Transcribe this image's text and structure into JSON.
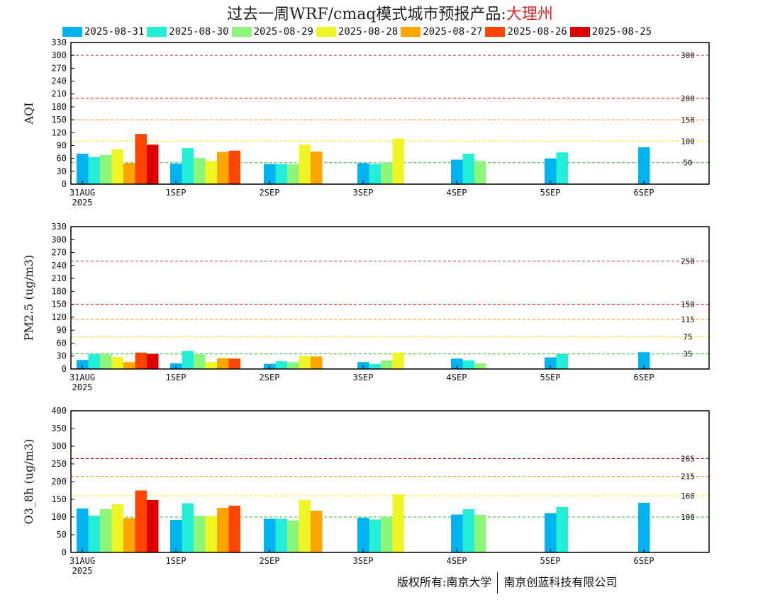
{
  "title": {
    "prefix": "过去一周WRF/cmaq模式城市预报产品:",
    "city": "大理州"
  },
  "legend": [
    {
      "label": "2025-08-31",
      "color": "#00b2ee"
    },
    {
      "label": "2025-08-30",
      "color": "#24efd6"
    },
    {
      "label": "2025-08-29",
      "color": "#8cf57a"
    },
    {
      "label": "2025-08-28",
      "color": "#eef522"
    },
    {
      "label": "2025-08-27",
      "color": "#ffa500"
    },
    {
      "label": "2025-08-26",
      "color": "#ff4500"
    },
    {
      "label": "2025-08-25",
      "color": "#dc0000"
    }
  ],
  "footer": {
    "left": "版权所有:南京大学",
    "right": "南京创蓝科技有限公司"
  },
  "chart_data": [
    {
      "type": "bar",
      "ylabel": "AQI",
      "ylim": [
        0,
        330
      ],
      "yticks": [
        0,
        30,
        60,
        90,
        120,
        150,
        180,
        210,
        240,
        270,
        300,
        330
      ],
      "categories": [
        "31AUG",
        "1SEP",
        "2SEP",
        "3SEP",
        "4SEP",
        "5SEP",
        "6SEP"
      ],
      "year_label": "2025",
      "thresholds": [
        {
          "value": 300,
          "label": "300",
          "color": "#b03060"
        },
        {
          "value": 200,
          "label": "200",
          "color": "#dc0000"
        },
        {
          "value": 150,
          "label": "150",
          "color": "#ff8c00"
        },
        {
          "value": 100,
          "label": "100",
          "color": "#eeee00"
        },
        {
          "value": 50,
          "label": "50",
          "color": "#22bb22"
        }
      ],
      "series": [
        {
          "values": [
            71,
            48,
            47,
            49,
            57,
            60,
            86
          ]
        },
        {
          "values": [
            63,
            84,
            47,
            47,
            71,
            74,
            null
          ]
        },
        {
          "values": [
            68,
            61,
            46,
            50,
            54,
            null,
            null
          ]
        },
        {
          "values": [
            81,
            54,
            92,
            106,
            null,
            null,
            null
          ]
        },
        {
          "values": [
            49,
            75,
            76,
            null,
            null,
            null,
            null
          ]
        },
        {
          "values": [
            117,
            78,
            null,
            null,
            null,
            null,
            null
          ]
        },
        {
          "values": [
            92,
            null,
            null,
            null,
            null,
            null,
            null
          ]
        }
      ]
    },
    {
      "type": "bar",
      "ylabel": "PM2.5 (ug/m3)",
      "ylim": [
        0,
        330
      ],
      "yticks": [
        0,
        30,
        60,
        90,
        120,
        150,
        180,
        210,
        240,
        270,
        300,
        330
      ],
      "categories": [
        "31AUG",
        "1SEP",
        "2SEP",
        "3SEP",
        "4SEP",
        "5SEP",
        "6SEP"
      ],
      "year_label": "2025",
      "thresholds": [
        {
          "value": 250,
          "label": "250",
          "color": "#b03060"
        },
        {
          "value": 150,
          "label": "150",
          "color": "#dc0000"
        },
        {
          "value": 115,
          "label": "115",
          "color": "#ff8c00"
        },
        {
          "value": 75,
          "label": "75",
          "color": "#eeee00"
        },
        {
          "value": 35,
          "label": "35",
          "color": "#22bb22"
        }
      ],
      "series": [
        {
          "values": [
            21,
            13,
            12,
            16,
            24,
            27,
            39
          ]
        },
        {
          "values": [
            35,
            42,
            18,
            12,
            20,
            35,
            null
          ]
        },
        {
          "values": [
            34,
            34,
            16,
            20,
            13,
            null,
            null
          ]
        },
        {
          "values": [
            28,
            16,
            30,
            38,
            null,
            null,
            null
          ]
        },
        {
          "values": [
            16,
            25,
            29,
            null,
            null,
            null,
            null
          ]
        },
        {
          "values": [
            38,
            24,
            null,
            null,
            null,
            null,
            null
          ]
        },
        {
          "values": [
            35,
            null,
            null,
            null,
            null,
            null,
            null
          ]
        }
      ]
    },
    {
      "type": "bar",
      "ylabel": "O3_8h (ug/m3)",
      "ylim": [
        0,
        400
      ],
      "yticks": [
        0,
        50,
        100,
        150,
        200,
        250,
        300,
        350,
        400
      ],
      "categories": [
        "31AUG",
        "1SEP",
        "2SEP",
        "3SEP",
        "4SEP",
        "5SEP",
        "6SEP"
      ],
      "year_label": "2025",
      "thresholds": [
        {
          "value": 265,
          "label": "265",
          "color": "#dc0000"
        },
        {
          "value": 215,
          "label": "215",
          "color": "#ff8c00"
        },
        {
          "value": 160,
          "label": "160",
          "color": "#eeee00"
        },
        {
          "value": 100,
          "label": "100",
          "color": "#22bb22"
        }
      ],
      "series": [
        {
          "values": [
            124,
            92,
            95,
            98,
            107,
            111,
            140
          ]
        },
        {
          "values": [
            104,
            139,
            95,
            93,
            122,
            128,
            null
          ]
        },
        {
          "values": [
            122,
            104,
            90,
            100,
            106,
            null,
            null
          ]
        },
        {
          "values": [
            136,
            103,
            148,
            164,
            null,
            null,
            null
          ]
        },
        {
          "values": [
            97,
            126,
            118,
            null,
            null,
            null,
            null
          ]
        },
        {
          "values": [
            175,
            132,
            null,
            null,
            null,
            null,
            null
          ]
        },
        {
          "values": [
            148,
            null,
            null,
            null,
            null,
            null,
            null
          ]
        }
      ]
    }
  ]
}
